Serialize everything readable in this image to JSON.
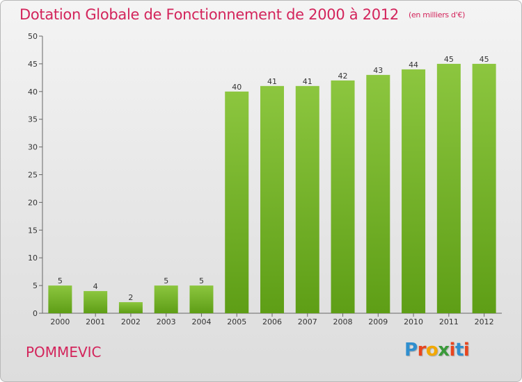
{
  "chart_data": {
    "type": "bar",
    "title": "Dotation Globale de Fonctionnement de 2000 à 2012",
    "subtitle": "(en milliers d'€)",
    "categories": [
      "2000",
      "2001",
      "2002",
      "2003",
      "2004",
      "2005",
      "2006",
      "2007",
      "2008",
      "2009",
      "2010",
      "2011",
      "2012"
    ],
    "values": [
      5,
      4,
      2,
      5,
      5,
      40,
      41,
      41,
      42,
      43,
      44,
      45,
      45
    ],
    "ylim": [
      0,
      50
    ],
    "yticks": [
      0,
      5,
      10,
      15,
      20,
      25,
      30,
      35,
      40,
      45,
      50
    ],
    "grid": false,
    "bar_color": "#8cc63f",
    "bar_color_dark": "#5e9e16"
  },
  "footer": {
    "commune": "POMMEVIC",
    "logo": "Proxiti"
  }
}
